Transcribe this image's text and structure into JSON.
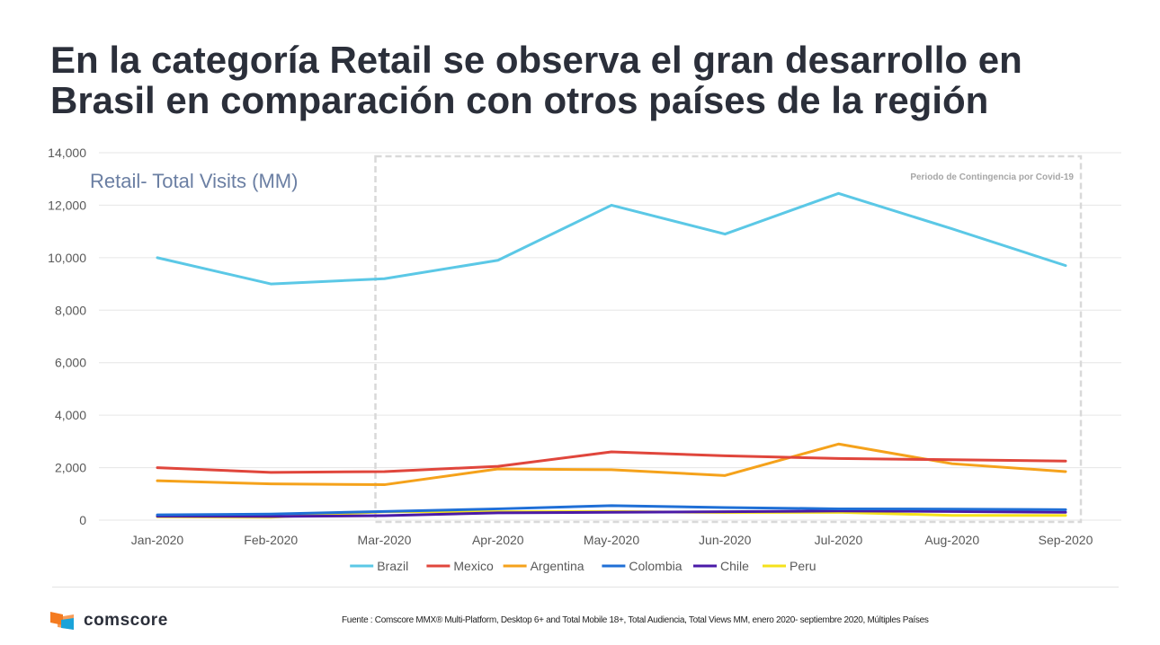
{
  "slide": {
    "title_line1": "En la categoría Retail se observa el gran desarrollo en",
    "title_line2": "Brasil en comparación con otros países de la región"
  },
  "chart_data": {
    "type": "line",
    "title": "Retail- Total Visits (MM)",
    "annotation": "Periodo de Contingencia por Covid-19",
    "annotation_range": [
      "Mar-2020",
      "Sep-2020"
    ],
    "categories": [
      "Jan-2020",
      "Feb-2020",
      "Mar-2020",
      "Apr-2020",
      "May-2020",
      "Jun-2020",
      "Jul-2020",
      "Aug-2020",
      "Sep-2020"
    ],
    "ylim": [
      0,
      14000
    ],
    "yticks": [
      0,
      2000,
      4000,
      6000,
      8000,
      10000,
      12000,
      14000
    ],
    "ytick_labels": [
      "0",
      "2,000",
      "4,000",
      "6,000",
      "8,000",
      "10,000",
      "12,000",
      "14,000"
    ],
    "grid": true,
    "legend_position": "bottom",
    "series": [
      {
        "name": "Brazil",
        "color": "#5bc8e6",
        "values": [
          10000,
          9000,
          9200,
          9900,
          12000,
          10900,
          12450,
          11100,
          9700
        ]
      },
      {
        "name": "Mexico",
        "color": "#e0463c",
        "values": [
          2000,
          1820,
          1850,
          2050,
          2600,
          2450,
          2350,
          2300,
          2250
        ]
      },
      {
        "name": "Argentina",
        "color": "#f5a21b",
        "values": [
          1500,
          1380,
          1350,
          1950,
          1920,
          1700,
          2900,
          2150,
          1850
        ]
      },
      {
        "name": "Colombia",
        "color": "#1f6fd6",
        "values": [
          200,
          230,
          330,
          430,
          550,
          480,
          430,
          420,
          400
        ]
      },
      {
        "name": "Chile",
        "color": "#4a1aa8",
        "values": [
          150,
          140,
          170,
          280,
          300,
          320,
          350,
          330,
          300
        ]
      },
      {
        "name": "Peru",
        "color": "#f5e21b",
        "values": [
          130,
          110,
          320,
          320,
          330,
          290,
          300,
          180,
          180
        ]
      }
    ]
  },
  "footer": {
    "logo_text": "comscore",
    "source": "Fuente : Comscore MMX® Multi-Platform, Desktop 6+ and Total Mobile 18+, Total Audiencia, Total Views MM, enero 2020- septiembre 2020, Múltiples Países"
  },
  "colors": {
    "title": "#2b2f3a",
    "chart_title": "#6b7fa3",
    "axis_text": "#595959",
    "grid": "#e6e6e6",
    "covid_box": "#d9d9d9"
  }
}
